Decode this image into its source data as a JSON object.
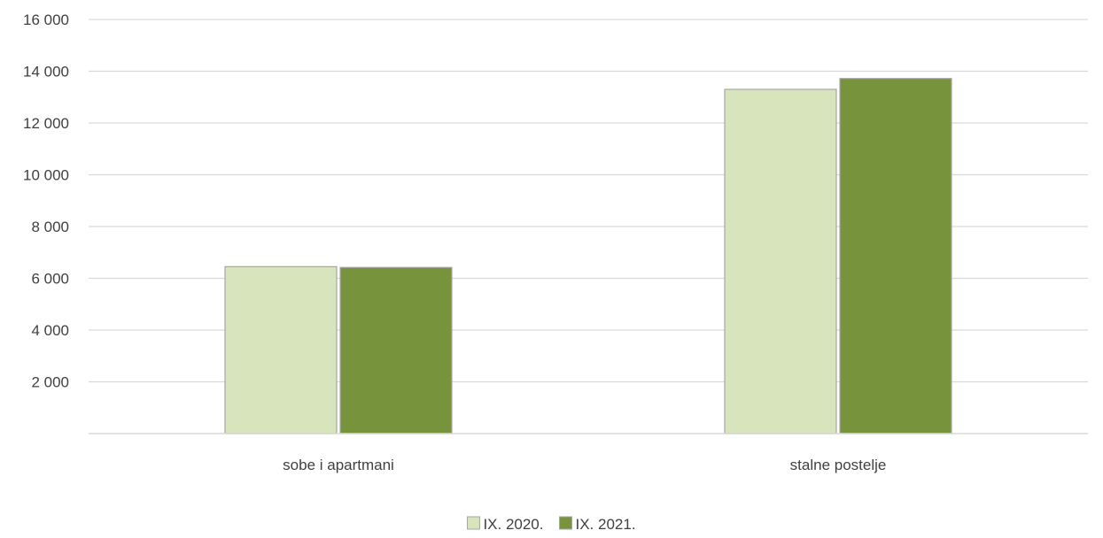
{
  "chart_data": {
    "type": "bar",
    "categories": [
      "sobe i apartmani",
      "stalne postelje"
    ],
    "series": [
      {
        "name": "IX. 2020.",
        "values": [
          6450,
          13300
        ],
        "color": "#d8e4bc"
      },
      {
        "name": "IX. 2021.",
        "values": [
          6420,
          13720
        ],
        "color": "#77933c"
      }
    ],
    "ylim": [
      0,
      16000
    ],
    "yticks": [
      {
        "value": 2000,
        "label": "2 000"
      },
      {
        "value": 4000,
        "label": "4 000"
      },
      {
        "value": 6000,
        "label": "6 000"
      },
      {
        "value": 8000,
        "label": "8 000"
      },
      {
        "value": 10000,
        "label": "10 000"
      },
      {
        "value": 12000,
        "label": "12 000"
      },
      {
        "value": 14000,
        "label": "14 000"
      },
      {
        "value": 16000,
        "label": "16 000"
      }
    ],
    "grid": true,
    "legend_position": "bottom-center",
    "title": "",
    "xlabel": "",
    "ylabel": ""
  }
}
